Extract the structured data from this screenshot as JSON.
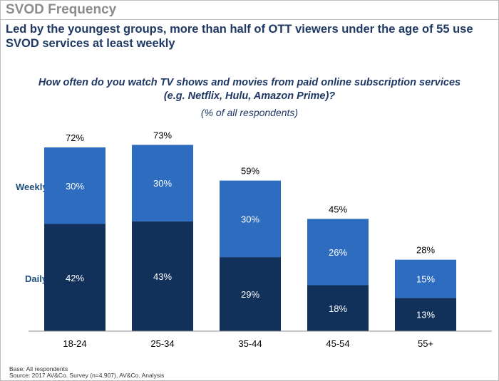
{
  "slide_title": "SVOD Frequency",
  "headline": "Led by the youngest groups, more than half of OTT viewers under the age of 55 use SVOD services at least weekly",
  "question": "How often do you watch TV shows and movies from paid online subscription services (e.g. Netflix, Hulu, Amazon Prime)?",
  "subquestion": "(% of all respondents)",
  "footnotes": {
    "base": "Base: All respondents",
    "source": "Source: 2017 AV&Co. Survey (n=4,907), AV&Co. Analysis"
  },
  "colors": {
    "daily": "#12315a",
    "weekly": "#2e6cc0",
    "title_gray": "#8c8c8c",
    "navy_text": "#1f3864"
  },
  "chart_data": {
    "type": "bar",
    "stacked": true,
    "categories": [
      "18-24",
      "25-34",
      "35-44",
      "45-54",
      "55+"
    ],
    "series": [
      {
        "name": "Daily",
        "values": [
          42,
          43,
          29,
          18,
          13
        ],
        "labels": [
          "42%",
          "43%",
          "29%",
          "18%",
          "13%"
        ]
      },
      {
        "name": "Weekly",
        "values": [
          30,
          30,
          30,
          26,
          15
        ],
        "labels": [
          "30%",
          "30%",
          "30%",
          "26%",
          "15%"
        ]
      }
    ],
    "totals": [
      72,
      73,
      59,
      45,
      28
    ],
    "total_labels": [
      "72%",
      "73%",
      "59%",
      "45%",
      "28%"
    ],
    "ylim": [
      0,
      80
    ]
  }
}
